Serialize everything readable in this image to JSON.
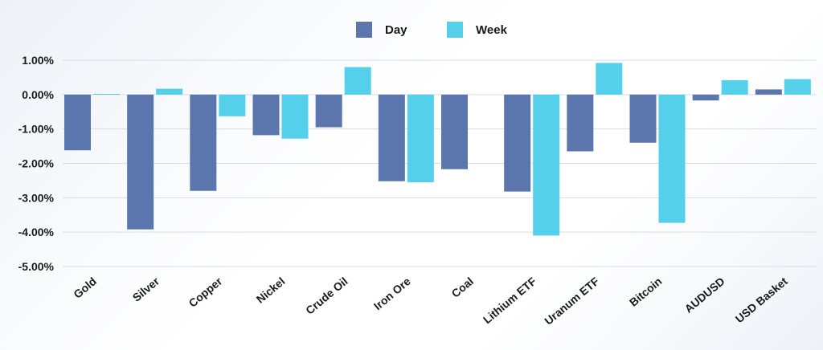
{
  "chart_data": {
    "type": "bar",
    "categories": [
      "Gold",
      "Silver",
      "Copper",
      "Nickel",
      "Crude Oil",
      "Iron Ore",
      "Coal",
      "Lithium ETF",
      "Uranum ETF",
      "Bitcoin",
      "AUDUSD",
      "USD Basket"
    ],
    "series": [
      {
        "name": "Day",
        "color": "#5b76ad",
        "values": [
          -1.62,
          -3.92,
          -2.8,
          -1.18,
          -0.95,
          -2.52,
          -2.17,
          -2.82,
          -1.65,
          -1.4,
          -0.17,
          0.15
        ]
      },
      {
        "name": "Week",
        "color": "#55d0ea",
        "values": [
          0.02,
          0.17,
          -0.63,
          -1.28,
          0.8,
          -2.55,
          0.0,
          -4.1,
          0.92,
          -3.73,
          0.42,
          0.45
        ]
      }
    ],
    "yticks": [
      "1.00%",
      "0.00%",
      "-1.00%",
      "-2.00%",
      "-3.00%",
      "-4.00%",
      "-5.00%"
    ],
    "ylim": [
      -5,
      1
    ],
    "grid": "horizontal",
    "legend_position": "top-center",
    "title": "",
    "xlabel": "",
    "ylabel": ""
  }
}
